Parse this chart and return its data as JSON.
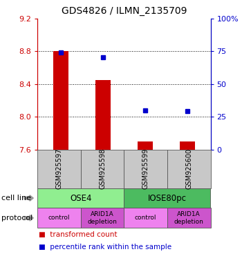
{
  "title": "GDS4826 / ILMN_2135709",
  "samples": [
    "GSM925597",
    "GSM925598",
    "GSM925599",
    "GSM925600"
  ],
  "red_values": [
    8.8,
    8.45,
    7.7,
    7.7
  ],
  "blue_values": [
    8.79,
    8.73,
    8.08,
    8.07
  ],
  "y_min": 7.6,
  "y_max": 9.2,
  "y_ticks_left": [
    7.6,
    8.0,
    8.4,
    8.8,
    9.2
  ],
  "y_ticks_right": [
    0,
    25,
    50,
    75,
    100
  ],
  "bar_color": "#CC0000",
  "dot_color": "#0000CC",
  "sample_bg_color": "#C8C8C8",
  "cell_line_colors": [
    "#90EE90",
    "#4CBB60"
  ],
  "cell_line_labels": [
    "OSE4",
    "IOSE80pc"
  ],
  "protocol_colors": [
    "#EE82EE",
    "#CC55CC",
    "#EE82EE",
    "#CC55CC"
  ],
  "protocol_labels": [
    "control",
    "ARID1A\ndepletion",
    "control",
    "ARID1A\ndepletion"
  ],
  "legend_red_label": "transformed count",
  "legend_blue_label": "percentile rank within the sample",
  "cell_line_label": "cell line",
  "protocol_label": "protocol",
  "left_axis_color": "#CC0000",
  "right_axis_color": "#0000CC",
  "grid_color": "#000000",
  "grid_lines": [
    8.0,
    8.4,
    8.8
  ]
}
